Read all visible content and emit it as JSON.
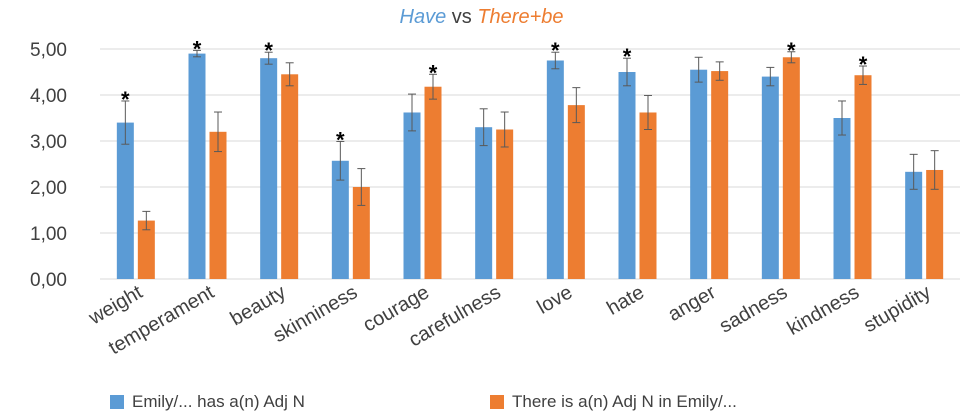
{
  "title": {
    "part1": "Have",
    "part2": " vs ",
    "part3": "There+be"
  },
  "colors": {
    "series1": "#5b9bd5",
    "series2": "#ed7d31",
    "grid": "#d9d9d9",
    "axis_text": "#404040",
    "error": "#595959"
  },
  "chart_data": {
    "type": "bar",
    "ylim": [
      0,
      5
    ],
    "yticks": [
      "0,00",
      "1,00",
      "2,00",
      "3,00",
      "4,00",
      "5,00"
    ],
    "grid": true,
    "legend_position": "bottom",
    "categories": [
      "weight",
      "temperament",
      "beauty",
      "skinniness",
      "courage",
      "carefulness",
      "love",
      "hate",
      "anger",
      "sadness",
      "kindness",
      "stupidity"
    ],
    "series": [
      {
        "name": "Emily/... has a(n) Adj N",
        "values": [
          3.4,
          4.9,
          4.8,
          2.57,
          3.62,
          3.3,
          4.75,
          4.5,
          4.55,
          4.4,
          3.5,
          2.33
        ],
        "errors": [
          0.47,
          0.07,
          0.13,
          0.42,
          0.4,
          0.4,
          0.18,
          0.3,
          0.27,
          0.2,
          0.37,
          0.38
        ]
      },
      {
        "name": "There is a(n) Adj N in Emily/...",
        "values": [
          1.27,
          3.2,
          4.45,
          2.0,
          4.18,
          3.25,
          3.78,
          3.62,
          4.52,
          4.82,
          4.43,
          2.37
        ],
        "errors": [
          0.2,
          0.43,
          0.25,
          0.4,
          0.27,
          0.38,
          0.38,
          0.37,
          0.2,
          0.12,
          0.2,
          0.42
        ]
      }
    ],
    "annotations": {
      "symbol": "*",
      "series1": [
        "weight",
        "temperament",
        "beauty",
        "skinniness",
        "love",
        "hate"
      ],
      "series2": [
        "courage",
        "sadness",
        "kindness"
      ]
    }
  }
}
